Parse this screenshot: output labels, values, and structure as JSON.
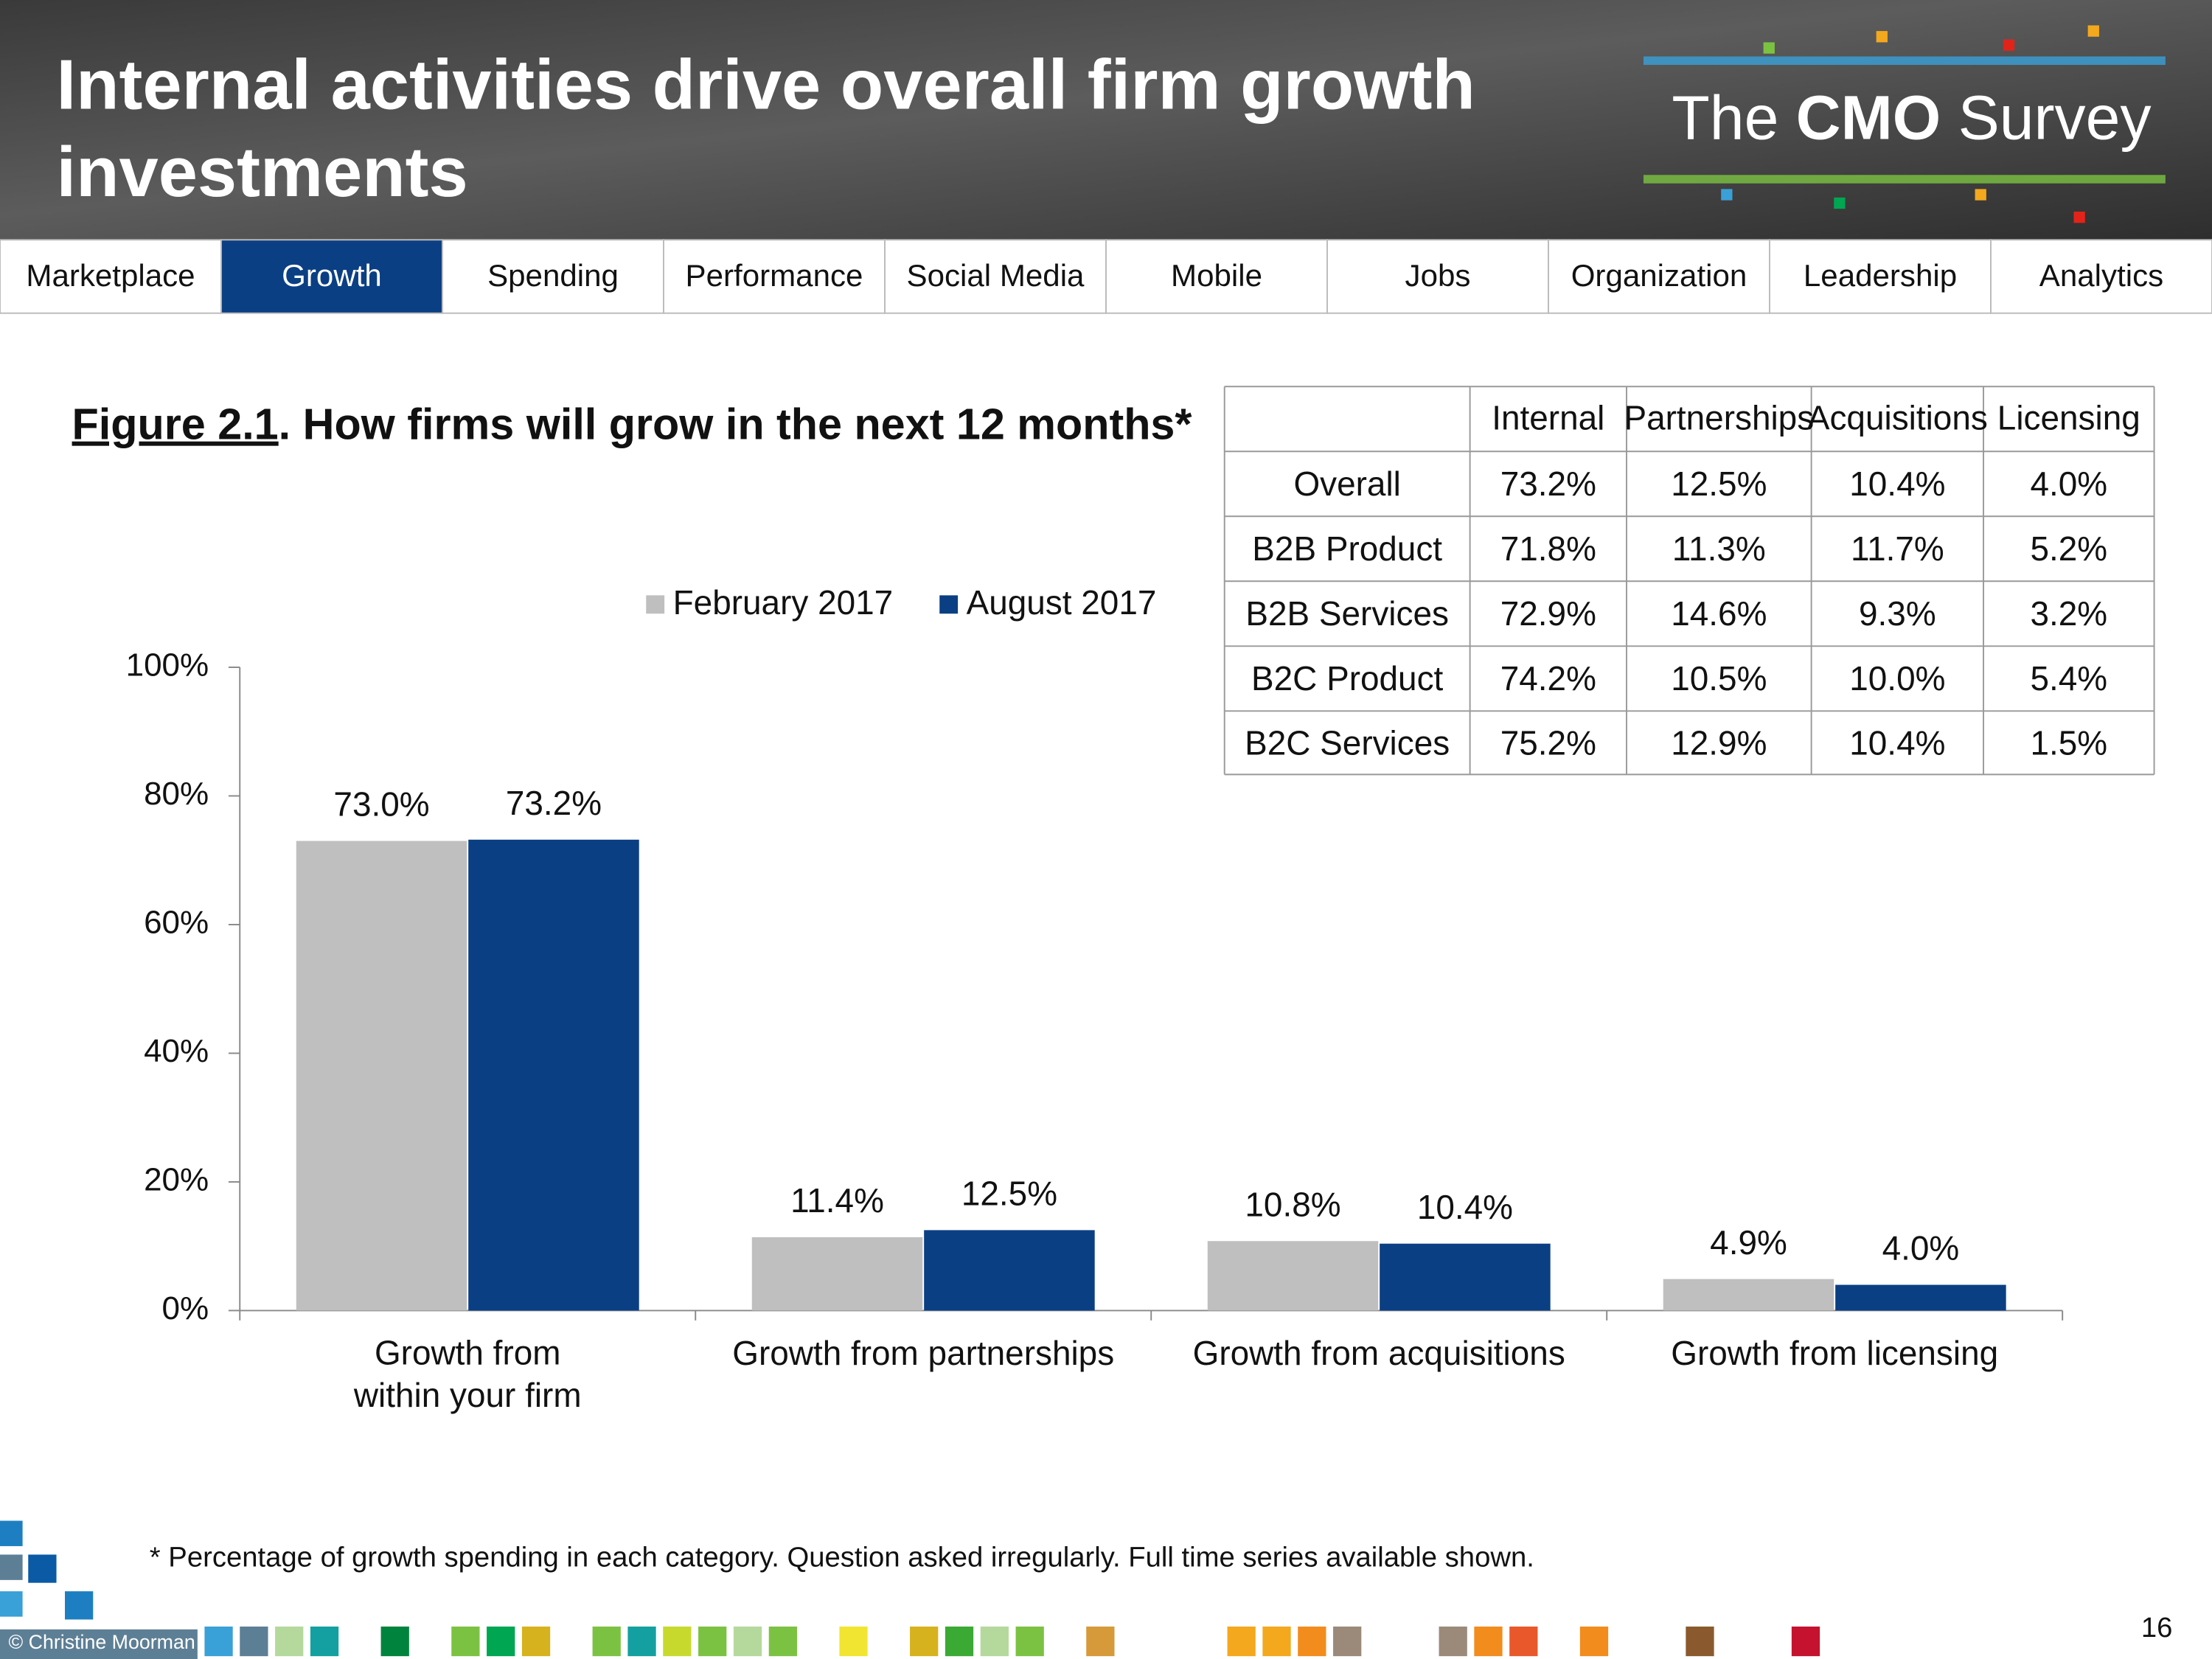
{
  "header": {
    "title": "Internal activities drive overall firm growth\ninvestments",
    "logo": {
      "pre": "The",
      "bold": "CMO",
      "post": "Survey"
    }
  },
  "nav": {
    "items": [
      "Marketplace",
      "Growth",
      "Spending",
      "Performance",
      "Social Media",
      "Mobile",
      "Jobs",
      "Organization",
      "Leadership",
      "Analytics"
    ],
    "active": 1
  },
  "figure": {
    "label": "Figure 2.1",
    "title": ".  How firms will grow in the next 12 months*"
  },
  "chart_data": {
    "type": "bar",
    "categories": [
      "Growth from\nwithin your firm",
      "Growth from partnerships",
      "Growth from acquisitions",
      "Growth from licensing"
    ],
    "series": [
      {
        "name": "February 2017",
        "color": "#bfbfbf",
        "values": [
          73.0,
          11.4,
          10.8,
          4.9
        ],
        "value_labels": [
          "73.0%",
          "11.4%",
          "10.8%",
          "4.9%"
        ]
      },
      {
        "name": "August 2017",
        "color": "#0b3f84",
        "values": [
          73.2,
          12.5,
          10.4,
          4.0
        ],
        "value_labels": [
          "73.2%",
          "12.5%",
          "10.4%",
          "4.0%"
        ]
      }
    ],
    "ylim": [
      0,
      100
    ],
    "yticks": [
      {
        "value": 0,
        "label": "0%"
      },
      {
        "value": 20,
        "label": "20%"
      },
      {
        "value": 40,
        "label": "40%"
      },
      {
        "value": 60,
        "label": "60%"
      },
      {
        "value": 80,
        "label": "80%"
      },
      {
        "value": 100,
        "label": "100%"
      }
    ],
    "grid": false,
    "legend": "top"
  },
  "table": {
    "columns": [
      "Internal",
      "Partnerships",
      "Acquisitions",
      "Licensing"
    ],
    "rows": [
      {
        "label": "Overall",
        "cells": [
          "73.2%",
          "12.5%",
          "10.4%",
          "4.0%"
        ]
      },
      {
        "label": "B2B Product",
        "cells": [
          "71.8%",
          "11.3%",
          "11.7%",
          "5.2%"
        ]
      },
      {
        "label": "B2B  Services",
        "cells": [
          "72.9%",
          "14.6%",
          "9.3%",
          "3.2%"
        ]
      },
      {
        "label": "B2C Product",
        "cells": [
          "74.2%",
          "10.5%",
          "10.0%",
          "5.4%"
        ]
      },
      {
        "label": "B2C  Services",
        "cells": [
          "75.2%",
          "12.9%",
          "10.4%",
          "1.5%"
        ]
      }
    ]
  },
  "footnote": "* Percentage of growth spending in each category. Question asked irregularly. Full time series available shown.",
  "footer": {
    "copyright": "© Christine Moorman",
    "page": "16"
  }
}
